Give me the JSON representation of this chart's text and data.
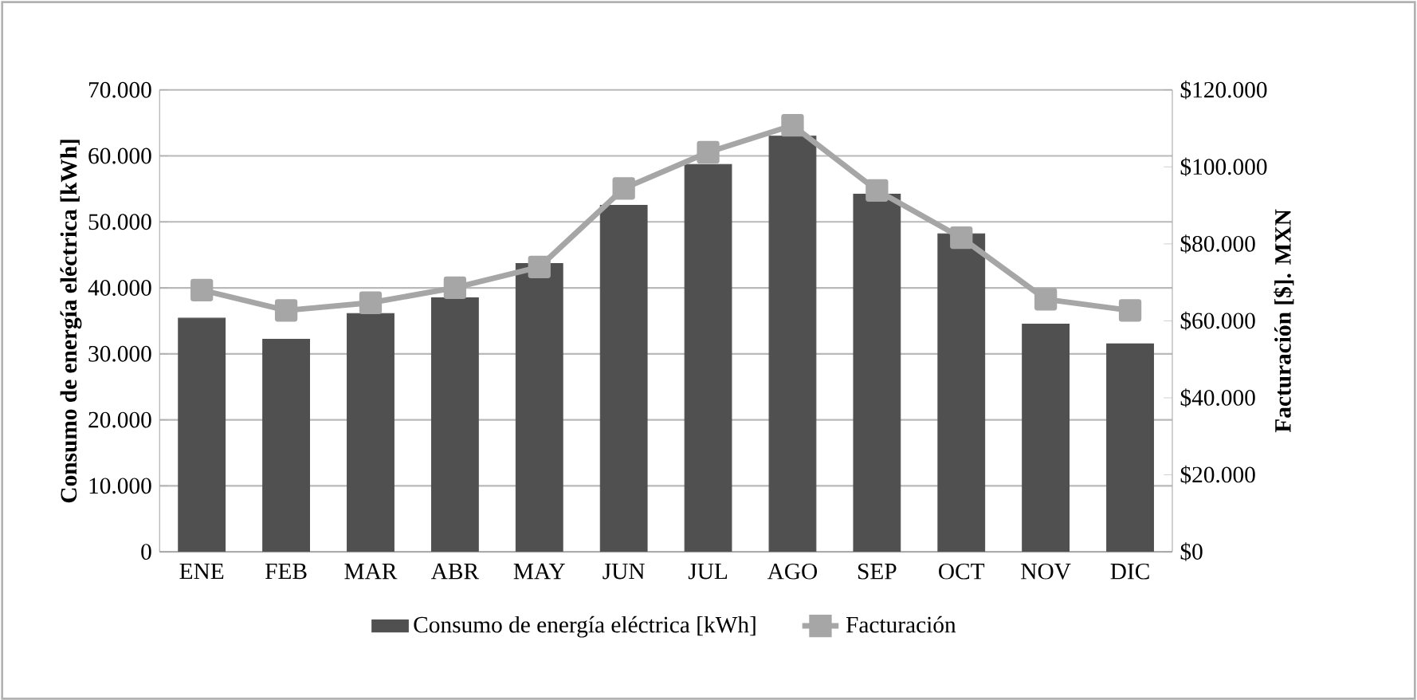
{
  "chart_data": {
    "type": "bar",
    "categories": [
      "ENE",
      "FEB",
      "MAR",
      "ABR",
      "MAY",
      "JUN",
      "JUL",
      "AGO",
      "SEP",
      "OCT",
      "NOV",
      "DIC"
    ],
    "series": [
      {
        "name": "Consumo de energía eléctrica [kWh]",
        "color": "#505050",
        "values": [
          35400,
          32200,
          36100,
          38500,
          43700,
          52500,
          58700,
          63000,
          54200,
          48200,
          34500,
          31500
        ]
      },
      {
        "name": "Facturación",
        "type": "line",
        "axis": "y2",
        "color": "#a6a6a6",
        "marker": "square",
        "values": [
          68000,
          62700,
          64700,
          68600,
          74000,
          94400,
          103800,
          110800,
          93900,
          81600,
          65600,
          62700
        ]
      }
    ],
    "ylabel": "Consumo de energía eléctrica [kWh]",
    "y2label": "Facturación [$]. MXN",
    "ylim": [
      0,
      70000
    ],
    "yticks": [
      {
        "value": 0,
        "label": "0"
      },
      {
        "value": 10000,
        "label": "10.000"
      },
      {
        "value": 20000,
        "label": "20.000"
      },
      {
        "value": 30000,
        "label": "30.000"
      },
      {
        "value": 40000,
        "label": "40.000"
      },
      {
        "value": 50000,
        "label": "50.000"
      },
      {
        "value": 60000,
        "label": "60.000"
      },
      {
        "value": 70000,
        "label": "70.000"
      }
    ],
    "y2lim": [
      0,
      120000
    ],
    "y2ticks": [
      {
        "value": 0,
        "label": "$0"
      },
      {
        "value": 20000,
        "label": "$20.000"
      },
      {
        "value": 40000,
        "label": "$40.000"
      },
      {
        "value": 60000,
        "label": "$60.000"
      },
      {
        "value": 80000,
        "label": "$80.000"
      },
      {
        "value": 100000,
        "label": "$100.000"
      },
      {
        "value": 120000,
        "label": "$120.000"
      }
    ],
    "grid": "y",
    "legend": "bottom"
  }
}
